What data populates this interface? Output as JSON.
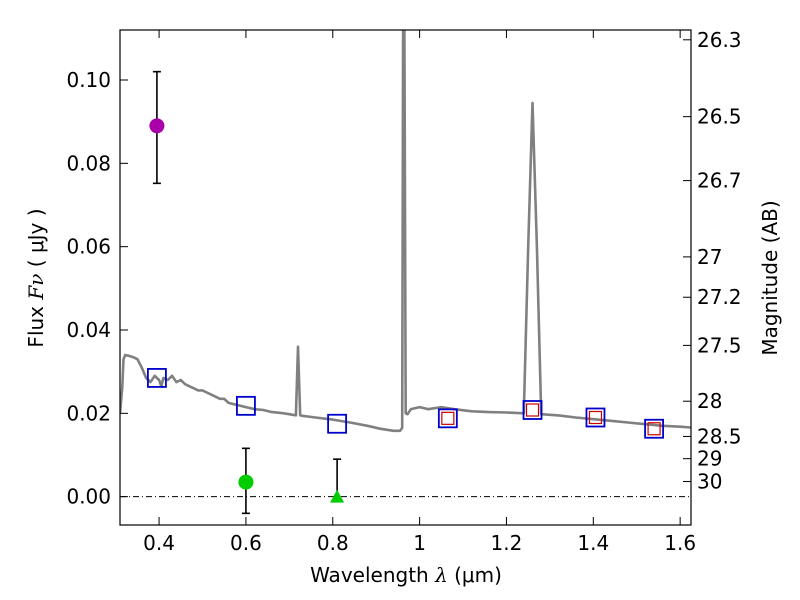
{
  "chart_data": {
    "type": "line",
    "xlabel": {
      "prefix": "Wavelength ",
      "symbol": "λ",
      "unit": " (μm)"
    },
    "ylabel": {
      "prefix": "Flux ",
      "symbol": "Fν",
      "unit": " ( μJy )"
    },
    "y2label": "Magnitude (AB)",
    "xlim": [
      0.31,
      1.625
    ],
    "ylim": [
      -0.0068,
      0.112
    ],
    "xticks": [
      0.4,
      0.6,
      0.8,
      1.0,
      1.2,
      1.4,
      1.6
    ],
    "xtick_labels": [
      "0.4",
      "0.6",
      "0.8",
      "1",
      "1.2",
      "1.4",
      "1.6"
    ],
    "yticks": [
      0.0,
      0.02,
      0.04,
      0.06,
      0.08,
      0.1
    ],
    "ytick_labels": [
      "0.00",
      "0.02",
      "0.04",
      "0.06",
      "0.08",
      "0.10"
    ],
    "magnitude_ticks": [
      26.3,
      26.5,
      26.7,
      27,
      27.2,
      27.5,
      28,
      28.5,
      29,
      30
    ],
    "magnitude_tick_labels": [
      "26.3",
      "26.5",
      "26.7",
      "27",
      "27.2",
      "27.5",
      "28",
      "28.5",
      "29",
      "30"
    ],
    "colors": {
      "sed": "#808080",
      "model_box": "#0000cc",
      "model_box_inner": "#cc0000",
      "magenta_point": "#aa00aa",
      "green_point": "#00cc00",
      "errorbar": "#000000",
      "zero_line": "#000000"
    },
    "series": [
      {
        "name": "SED template",
        "kind": "line",
        "x": [
          0.31,
          0.315,
          0.318,
          0.322,
          0.33,
          0.34,
          0.35,
          0.36,
          0.37,
          0.38,
          0.39,
          0.4,
          0.405,
          0.41,
          0.42,
          0.43,
          0.44,
          0.45,
          0.46,
          0.47,
          0.48,
          0.49,
          0.5,
          0.51,
          0.52,
          0.53,
          0.54,
          0.55,
          0.56,
          0.58,
          0.6,
          0.62,
          0.64,
          0.66,
          0.68,
          0.7,
          0.715,
          0.72,
          0.725,
          0.73,
          0.76,
          0.8,
          0.84,
          0.88,
          0.91,
          0.94,
          0.955,
          0.96,
          0.962,
          0.965,
          0.968,
          0.972,
          0.98,
          1.0,
          1.02,
          1.05,
          1.08,
          1.12,
          1.16,
          1.2,
          1.24,
          1.25,
          1.26,
          1.27,
          1.28,
          1.32,
          1.36,
          1.4,
          1.44,
          1.48,
          1.52,
          1.56,
          1.6,
          1.625
        ],
        "y": [
          0.02,
          0.026,
          0.033,
          0.034,
          0.0338,
          0.0335,
          0.033,
          0.031,
          0.0285,
          0.0275,
          0.029,
          0.028,
          0.0265,
          0.0285,
          0.028,
          0.029,
          0.0275,
          0.028,
          0.027,
          0.0265,
          0.026,
          0.0255,
          0.0255,
          0.025,
          0.0245,
          0.024,
          0.0235,
          0.0235,
          0.0225,
          0.022,
          0.0215,
          0.021,
          0.0208,
          0.0203,
          0.0201,
          0.0198,
          0.0195,
          0.036,
          0.0195,
          0.0194,
          0.019,
          0.0185,
          0.0178,
          0.017,
          0.0163,
          0.0158,
          0.0158,
          0.0165,
          0.112,
          0.112,
          0.02,
          0.0198,
          0.021,
          0.0215,
          0.021,
          0.0215,
          0.021,
          0.0205,
          0.0203,
          0.0202,
          0.02,
          0.06,
          0.0945,
          0.06,
          0.0198,
          0.0195,
          0.019,
          0.0186,
          0.0182,
          0.0178,
          0.0174,
          0.017,
          0.0168,
          0.0166
        ]
      },
      {
        "name": "Model photometry",
        "kind": "square",
        "x": [
          0.395,
          0.6,
          0.81,
          1.065,
          1.26,
          1.405,
          1.54
        ],
        "y": [
          0.0285,
          0.0218,
          0.0175,
          0.0188,
          0.0208,
          0.019,
          0.0163
        ],
        "inner": [
          false,
          false,
          false,
          true,
          true,
          true,
          true
        ]
      },
      {
        "name": "Magenta detection",
        "kind": "circle",
        "x": [
          0.395
        ],
        "y": [
          0.089
        ],
        "err_low": [
          0.0138
        ],
        "err_high": [
          0.013
        ]
      },
      {
        "name": "Green detection",
        "kind": "circle",
        "x": [
          0.6
        ],
        "y": [
          0.0035
        ],
        "err_low": [
          0.0075
        ],
        "err_high": [
          0.0081
        ]
      },
      {
        "name": "Green upper limit",
        "kind": "triangle",
        "x": [
          0.81
        ],
        "y": [
          0.0
        ],
        "err_low": [
          0.0
        ],
        "err_high": [
          0.009
        ]
      }
    ]
  }
}
